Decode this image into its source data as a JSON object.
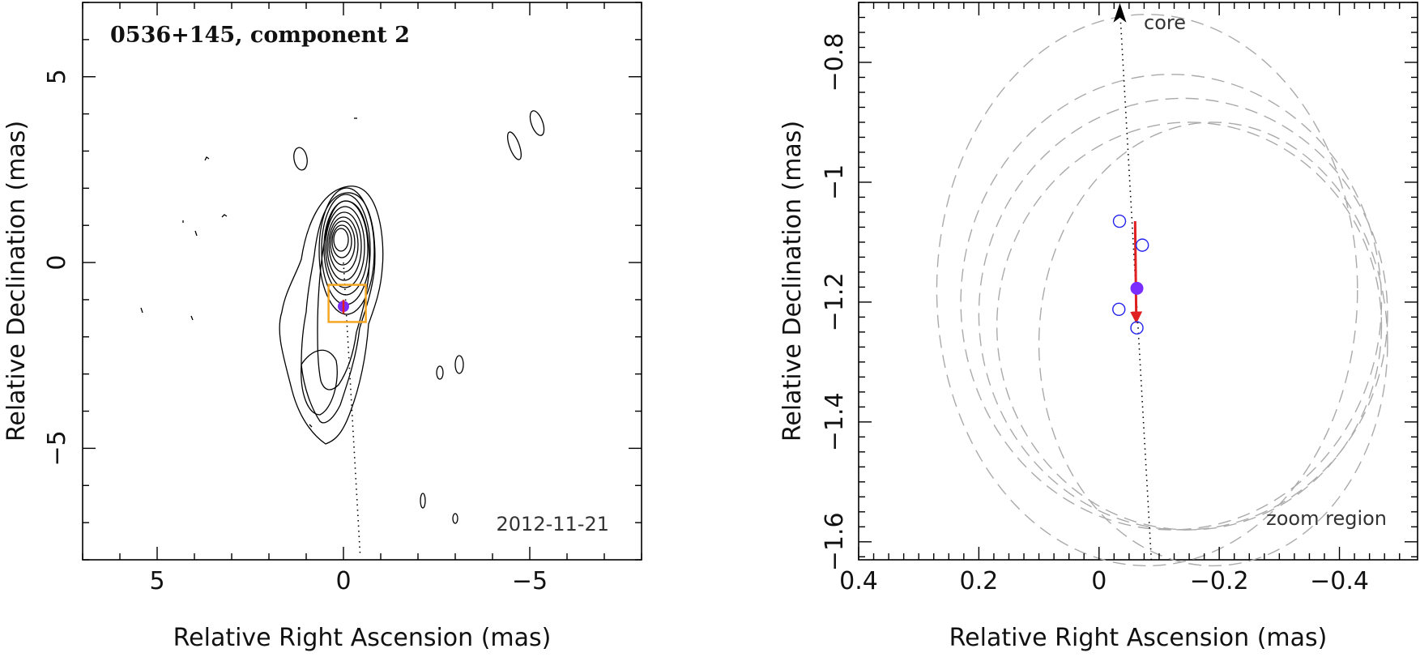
{
  "chart_data": [
    {
      "type": "contour",
      "title": "0536+145, component 2",
      "date": "2012-11-21",
      "xlabel": "Relative Right Ascension (mas)",
      "ylabel": "Relative Declination (mas)",
      "xlim": [
        7,
        -8
      ],
      "ylim": [
        -8,
        7
      ],
      "xticks_major": [
        5,
        0,
        -5
      ],
      "yticks_major": [
        5,
        0,
        -5
      ],
      "xtick_labels": [
        "5",
        "0",
        "−5"
      ],
      "ytick_labels": [
        "5",
        "0",
        "−5"
      ],
      "component_position": [
        0.0,
        -1.18
      ],
      "jet_direction_line": {
        "from": [
          0.0,
          0.0
        ],
        "to": [
          -0.45,
          -7.9
        ]
      },
      "zoom_box": {
        "x": [
          0.4,
          -0.6
        ],
        "y": [
          -0.6,
          -1.6
        ]
      },
      "colors": {
        "contours": "#000000",
        "component": "#7b2cff",
        "zoom_box": "#f5a623",
        "arrow": "#e02020"
      }
    },
    {
      "type": "scatter",
      "xlabel": "Relative Right Ascension (mas)",
      "ylabel": "Relative Declination (mas)",
      "xlim": [
        0.4,
        -0.53
      ],
      "ylim": [
        -1.63,
        -0.7
      ],
      "xticks_major": [
        0.4,
        0.2,
        0,
        -0.2,
        -0.4
      ],
      "yticks_major": [
        -0.8,
        -1.0,
        -1.2,
        -1.4,
        -1.6
      ],
      "xtick_labels": [
        "0.4",
        "0.2",
        "0",
        "−0.2",
        "−0.4"
      ],
      "ytick_labels": [
        "−0.8",
        "−1",
        "−1.2",
        "−1.4",
        "−1.6"
      ],
      "annotations": {
        "core": "core",
        "zoom": "zoom region"
      },
      "epochs": [
        {
          "x": -0.034,
          "y": -1.065
        },
        {
          "x": -0.072,
          "y": -1.105
        },
        {
          "x": -0.033,
          "y": -1.212
        },
        {
          "x": -0.063,
          "y": -1.243
        }
      ],
      "mean_position": {
        "x": -0.063,
        "y": -1.177
      },
      "motion_arrow": {
        "from": [
          -0.06,
          -1.065
        ],
        "to": [
          -0.062,
          -1.232
        ]
      },
      "jet_direction_line": {
        "from": [
          -0.036,
          -0.72
        ],
        "to": [
          -0.087,
          -1.63
        ]
      },
      "beam_rings": [
        {
          "cx": -0.08,
          "cy": -1.18,
          "rx": 0.35,
          "ry": 0.46
        },
        {
          "cx": -0.12,
          "cy": -1.2,
          "rx": 0.35,
          "ry": 0.38
        },
        {
          "cx": -0.14,
          "cy": -1.22,
          "rx": 0.34,
          "ry": 0.36
        },
        {
          "cx": -0.15,
          "cy": -1.24,
          "rx": 0.32,
          "ry": 0.34
        },
        {
          "cx": -0.19,
          "cy": -1.27,
          "rx": 0.29,
          "ry": 0.37
        }
      ],
      "colors": {
        "epochs": "#2222ee",
        "mean": "#7b2cff",
        "arrow": "#e02020",
        "rings": "#aaaaaa",
        "core_arrow": "#000000"
      }
    }
  ]
}
